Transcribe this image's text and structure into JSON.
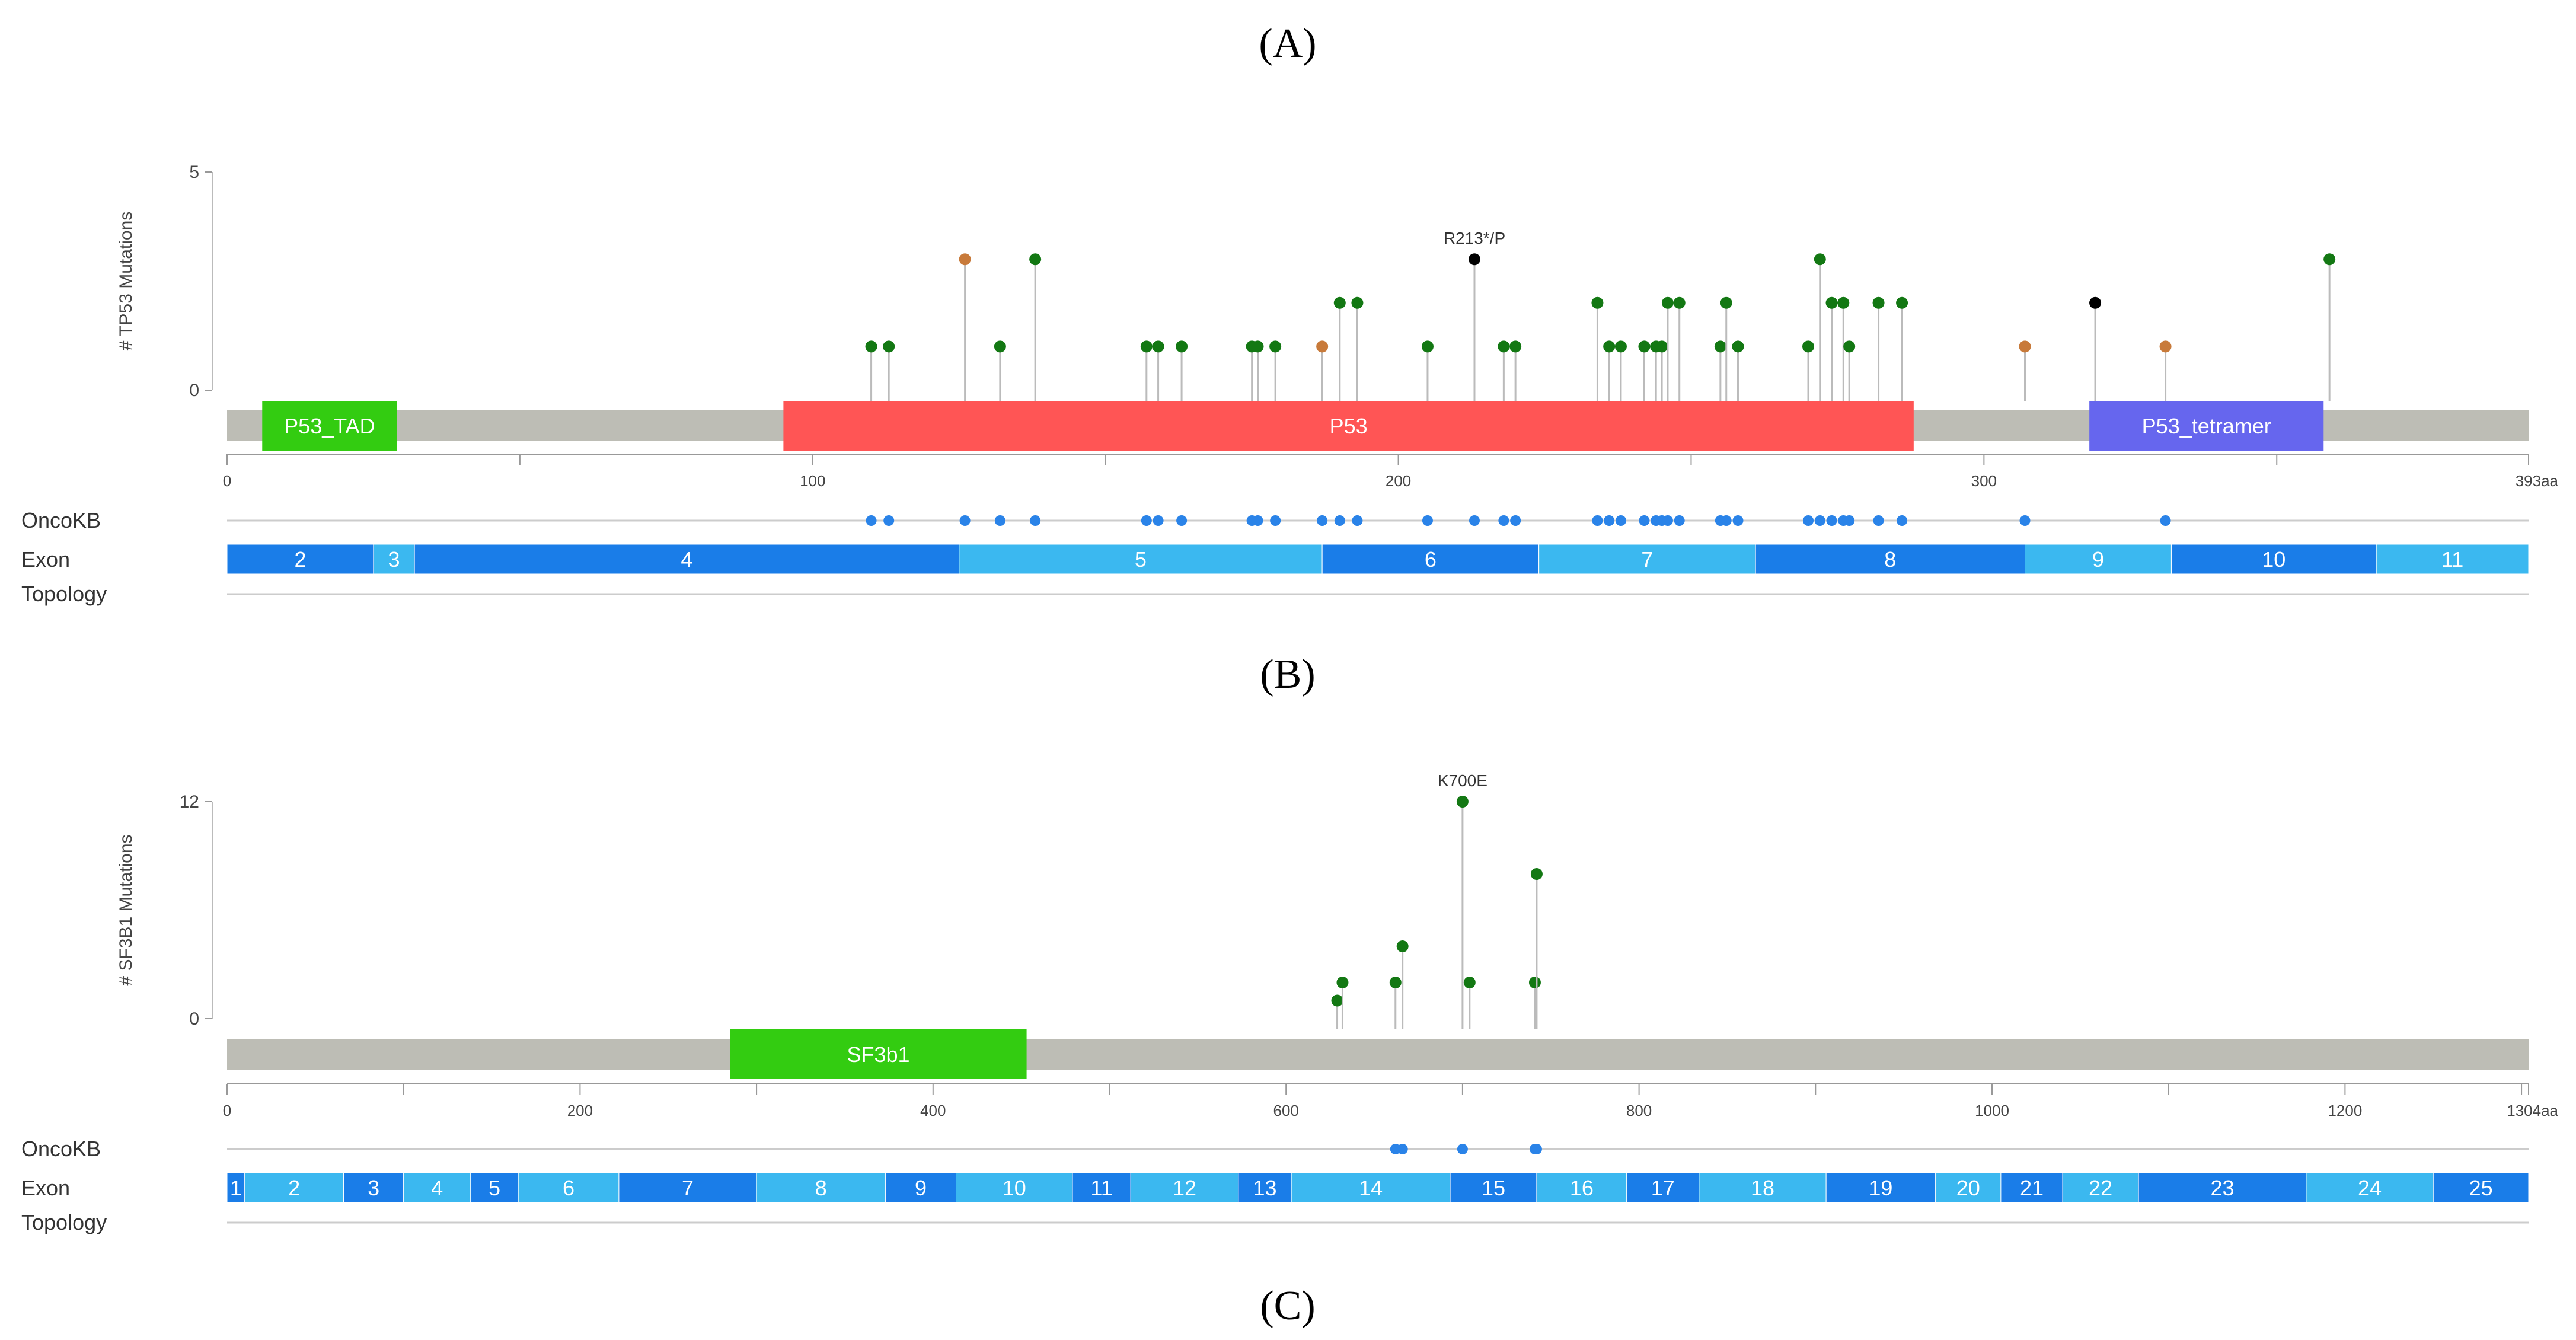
{
  "panel_labels": [
    "(A)",
    "(B)",
    "(C)"
  ],
  "track_labels": [
    "OncoKB",
    "Exon",
    "Topology"
  ],
  "colors": {
    "backbone": "#bdbdb5",
    "missense": "#137813",
    "truncating": "#000000",
    "inframe": "#c87a3a",
    "oncokb": "#2a83e8",
    "exon_dark": "#1a7de8",
    "exon_light": "#3bb8f0",
    "stem": "#bbbbbb"
  },
  "chart_data": [
    {
      "type": "lollipop",
      "gene": "TP53",
      "ylabel": "# TP53 Mutations",
      "ylim": [
        0,
        5
      ],
      "yticks": [
        0,
        5
      ],
      "protein_length": 393,
      "xticks": [
        0,
        100,
        200,
        300
      ],
      "end_label": "393aa",
      "domains": [
        {
          "name": "P53_TAD",
          "start": 6,
          "end": 29,
          "color": "#33cc11"
        },
        {
          "name": "P53",
          "start": 95,
          "end": 288,
          "color": "#ff5555"
        },
        {
          "name": "P53_tetramer",
          "start": 318,
          "end": 358,
          "color": "#6666ee"
        }
      ],
      "mutations": [
        {
          "pos": 110,
          "count": 1,
          "type": "missense"
        },
        {
          "pos": 113,
          "count": 1,
          "type": "missense"
        },
        {
          "pos": 126,
          "count": 3,
          "type": "inframe"
        },
        {
          "pos": 132,
          "count": 1,
          "type": "missense"
        },
        {
          "pos": 138,
          "count": 3,
          "type": "missense"
        },
        {
          "pos": 157,
          "count": 1,
          "type": "missense"
        },
        {
          "pos": 159,
          "count": 1,
          "type": "missense"
        },
        {
          "pos": 163,
          "count": 1,
          "type": "missense"
        },
        {
          "pos": 175,
          "count": 1,
          "type": "missense"
        },
        {
          "pos": 176,
          "count": 1,
          "type": "missense"
        },
        {
          "pos": 179,
          "count": 1,
          "type": "missense"
        },
        {
          "pos": 187,
          "count": 1,
          "type": "inframe"
        },
        {
          "pos": 190,
          "count": 2,
          "type": "missense"
        },
        {
          "pos": 193,
          "count": 2,
          "type": "missense"
        },
        {
          "pos": 205,
          "count": 1,
          "type": "missense"
        },
        {
          "pos": 213,
          "count": 3,
          "type": "truncating"
        },
        {
          "pos": 218,
          "count": 1,
          "type": "missense"
        },
        {
          "pos": 220,
          "count": 1,
          "type": "missense"
        },
        {
          "pos": 234,
          "count": 2,
          "type": "missense"
        },
        {
          "pos": 236,
          "count": 1,
          "type": "missense"
        },
        {
          "pos": 238,
          "count": 1,
          "type": "missense"
        },
        {
          "pos": 242,
          "count": 1,
          "type": "missense"
        },
        {
          "pos": 244,
          "count": 1,
          "type": "missense"
        },
        {
          "pos": 245,
          "count": 1,
          "type": "missense"
        },
        {
          "pos": 246,
          "count": 2,
          "type": "missense"
        },
        {
          "pos": 248,
          "count": 2,
          "type": "missense"
        },
        {
          "pos": 255,
          "count": 1,
          "type": "missense"
        },
        {
          "pos": 256,
          "count": 2,
          "type": "missense"
        },
        {
          "pos": 258,
          "count": 1,
          "type": "missense"
        },
        {
          "pos": 270,
          "count": 1,
          "type": "missense"
        },
        {
          "pos": 272,
          "count": 3,
          "type": "missense"
        },
        {
          "pos": 274,
          "count": 2,
          "type": "missense"
        },
        {
          "pos": 276,
          "count": 2,
          "type": "missense"
        },
        {
          "pos": 277,
          "count": 1,
          "type": "missense"
        },
        {
          "pos": 282,
          "count": 2,
          "type": "missense"
        },
        {
          "pos": 286,
          "count": 2,
          "type": "missense"
        },
        {
          "pos": 307,
          "count": 1,
          "type": "inframe"
        },
        {
          "pos": 319,
          "count": 2,
          "type": "truncating"
        },
        {
          "pos": 331,
          "count": 1,
          "type": "inframe"
        },
        {
          "pos": 359,
          "count": 3,
          "type": "missense"
        }
      ],
      "annotations": [
        {
          "pos": 213,
          "count": 3,
          "text": "R213*/P"
        }
      ],
      "oncokb": [
        110,
        113,
        126,
        132,
        138,
        157,
        159,
        163,
        175,
        176,
        179,
        187,
        190,
        193,
        205,
        213,
        218,
        220,
        234,
        236,
        238,
        242,
        244,
        245,
        246,
        248,
        255,
        256,
        258,
        270,
        272,
        274,
        276,
        277,
        282,
        286,
        307,
        331
      ],
      "exons": [
        {
          "label": "2",
          "start": 0,
          "end": 25
        },
        {
          "label": "3",
          "start": 25,
          "end": 32
        },
        {
          "label": "4",
          "start": 32,
          "end": 125
        },
        {
          "label": "5",
          "start": 125,
          "end": 187
        },
        {
          "label": "6",
          "start": 187,
          "end": 224
        },
        {
          "label": "7",
          "start": 224,
          "end": 261
        },
        {
          "label": "8",
          "start": 261,
          "end": 307
        },
        {
          "label": "9",
          "start": 307,
          "end": 332
        },
        {
          "label": "10",
          "start": 332,
          "end": 367
        },
        {
          "label": "11",
          "start": 367,
          "end": 393
        }
      ]
    },
    {
      "type": "lollipop",
      "gene": "SF3B1",
      "ylabel": "# SF3B1 Mutations",
      "ylim": [
        0,
        12
      ],
      "yticks": [
        0,
        12
      ],
      "protein_length": 1304,
      "xticks": [
        0,
        200,
        400,
        600,
        800,
        1000,
        1200
      ],
      "end_label": "1304aa",
      "domains": [
        {
          "name": "SF3b1",
          "start": 285,
          "end": 453,
          "color": "#33cc11"
        }
      ],
      "mutations": [
        {
          "pos": 629,
          "count": 1,
          "type": "missense"
        },
        {
          "pos": 632,
          "count": 2,
          "type": "missense"
        },
        {
          "pos": 662,
          "count": 2,
          "type": "missense"
        },
        {
          "pos": 666,
          "count": 4,
          "type": "missense"
        },
        {
          "pos": 700,
          "count": 12,
          "type": "missense"
        },
        {
          "pos": 704,
          "count": 2,
          "type": "missense"
        },
        {
          "pos": 741,
          "count": 2,
          "type": "missense"
        },
        {
          "pos": 742,
          "count": 8,
          "type": "missense"
        }
      ],
      "annotations": [
        {
          "pos": 700,
          "count": 12,
          "text": "K700E"
        }
      ],
      "oncokb": [
        662,
        666,
        700,
        741,
        742
      ],
      "exons": [
        {
          "label": "1",
          "start": 0,
          "end": 10
        },
        {
          "label": "2",
          "start": 10,
          "end": 66
        },
        {
          "label": "3",
          "start": 66,
          "end": 100
        },
        {
          "label": "4",
          "start": 100,
          "end": 138
        },
        {
          "label": "5",
          "start": 138,
          "end": 165
        },
        {
          "label": "6",
          "start": 165,
          "end": 222
        },
        {
          "label": "7",
          "start": 222,
          "end": 300
        },
        {
          "label": "8",
          "start": 300,
          "end": 373
        },
        {
          "label": "9",
          "start": 373,
          "end": 413
        },
        {
          "label": "10",
          "start": 413,
          "end": 479
        },
        {
          "label": "11",
          "start": 479,
          "end": 512
        },
        {
          "label": "12",
          "start": 512,
          "end": 573
        },
        {
          "label": "13",
          "start": 573,
          "end": 603
        },
        {
          "label": "14",
          "start": 603,
          "end": 693
        },
        {
          "label": "15",
          "start": 693,
          "end": 742
        },
        {
          "label": "16",
          "start": 742,
          "end": 793
        },
        {
          "label": "17",
          "start": 793,
          "end": 834
        },
        {
          "label": "18",
          "start": 834,
          "end": 906
        },
        {
          "label": "19",
          "start": 906,
          "end": 968
        },
        {
          "label": "20",
          "start": 968,
          "end": 1005
        },
        {
          "label": "21",
          "start": 1005,
          "end": 1040
        },
        {
          "label": "22",
          "start": 1040,
          "end": 1083
        },
        {
          "label": "23",
          "start": 1083,
          "end": 1178
        },
        {
          "label": "24",
          "start": 1178,
          "end": 1250
        },
        {
          "label": "25",
          "start": 1250,
          "end": 1304
        }
      ]
    }
  ]
}
